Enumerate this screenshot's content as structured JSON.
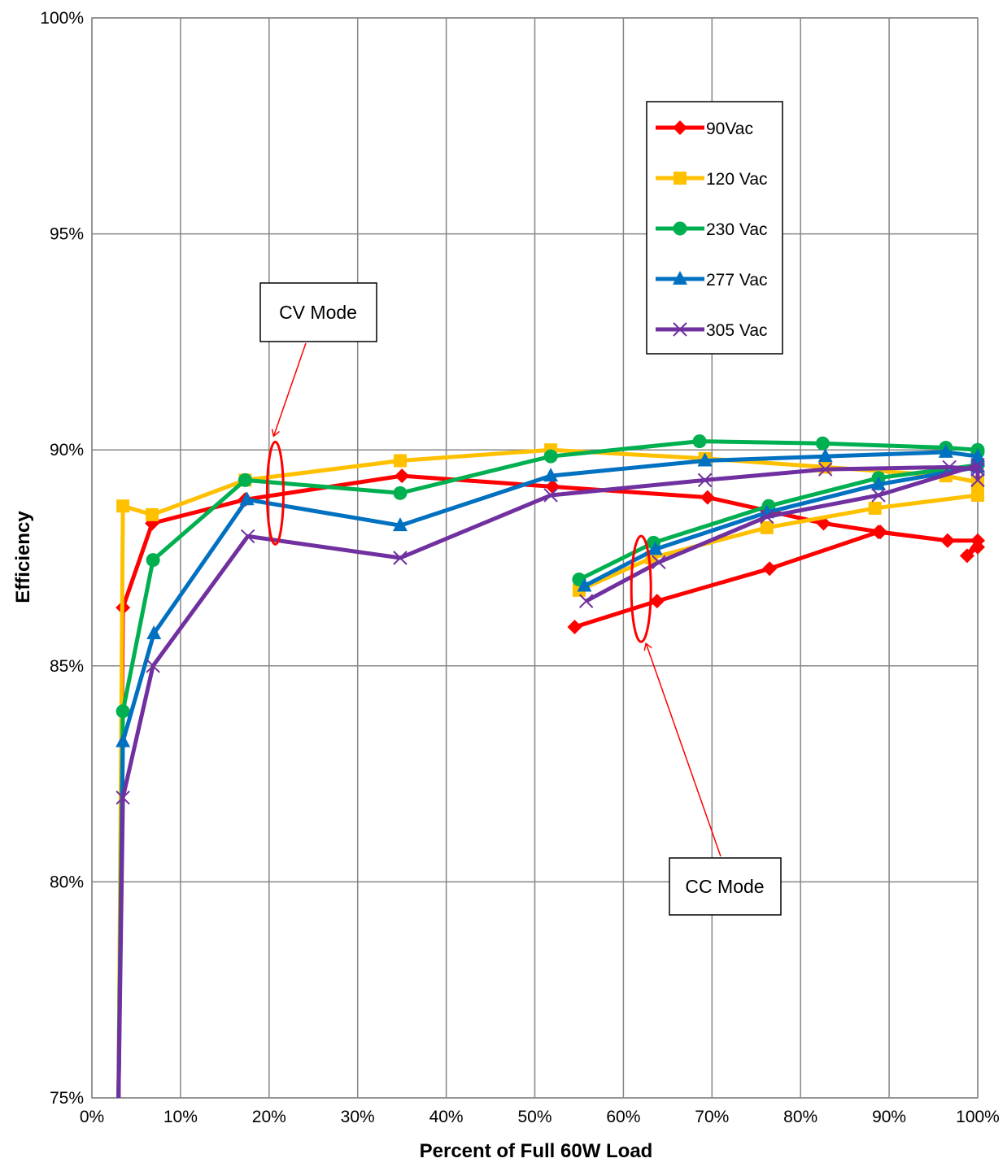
{
  "chart_data": {
    "type": "line",
    "xlabel": "Percent of Full 60W Load",
    "ylabel": "Efficiency",
    "xlim": [
      0,
      100
    ],
    "ylim": [
      75,
      100
    ],
    "x_ticks": [
      "0%",
      "10%",
      "20%",
      "30%",
      "40%",
      "50%",
      "60%",
      "70%",
      "80%",
      "90%",
      "100%"
    ],
    "y_ticks": [
      "75%",
      "80%",
      "85%",
      "90%",
      "95%",
      "100%"
    ],
    "grid": true,
    "legend_position": "top-right",
    "series": [
      {
        "name": "90Vac",
        "color": "#ff0000",
        "marker": "diamond",
        "segments": [
          [
            [
              3,
              75.0
            ],
            [
              3.5,
              86.35
            ],
            [
              6.8,
              88.3
            ],
            [
              17.3,
              88.85
            ],
            [
              35,
              89.4
            ],
            [
              52,
              89.15
            ],
            [
              69.5,
              88.9
            ],
            [
              82.6,
              88.3
            ],
            [
              89,
              88.1
            ],
            [
              96.6,
              87.9
            ],
            [
              100,
              87.9
            ],
            [
              98.8,
              87.55
            ],
            [
              100,
              87.75
            ]
          ],
          [
            [
              54.5,
              85.9
            ],
            [
              63.8,
              86.5
            ],
            [
              76.5,
              87.25
            ],
            [
              88.8,
              88.1
            ],
            [
              96.6,
              87.9
            ]
          ]
        ]
      },
      {
        "name": "120 Vac",
        "color": "#ffc000",
        "marker": "square",
        "segments": [
          [
            [
              3,
              75.0
            ],
            [
              3.5,
              88.7
            ],
            [
              6.8,
              88.5
            ],
            [
              17.3,
              89.3
            ],
            [
              34.8,
              89.75
            ],
            [
              51.8,
              90.0
            ],
            [
              69.2,
              89.8
            ],
            [
              82.8,
              89.6
            ],
            [
              96.4,
              89.4
            ],
            [
              100,
              89.25
            ],
            [
              100,
              89.05
            ]
          ],
          [
            [
              55,
              86.75
            ],
            [
              63.2,
              87.5
            ],
            [
              76.2,
              88.2
            ],
            [
              88.4,
              88.65
            ],
            [
              100,
              88.95
            ]
          ]
        ]
      },
      {
        "name": "230 Vac",
        "color": "#00b050",
        "marker": "circle",
        "segments": [
          [
            [
              3,
              75.0
            ],
            [
              3.5,
              83.95
            ],
            [
              6.9,
              87.45
            ],
            [
              17.3,
              89.3
            ],
            [
              34.8,
              89.0
            ],
            [
              51.8,
              89.85
            ],
            [
              68.6,
              90.2
            ],
            [
              82.5,
              90.15
            ],
            [
              96.4,
              90.05
            ],
            [
              100,
              90.0
            ],
            [
              100,
              89.95
            ]
          ],
          [
            [
              55,
              87.0
            ],
            [
              63.4,
              87.85
            ],
            [
              76.4,
              88.7
            ],
            [
              88.8,
              89.35
            ],
            [
              100,
              89.65
            ]
          ]
        ]
      },
      {
        "name": "277 Vac",
        "color": "#0070c0",
        "marker": "triangle",
        "segments": [
          [
            [
              3,
              75.0
            ],
            [
              3.5,
              83.25
            ],
            [
              7.0,
              85.75
            ],
            [
              17.5,
              88.85
            ],
            [
              34.8,
              88.25
            ],
            [
              51.8,
              89.4
            ],
            [
              69.2,
              89.75
            ],
            [
              82.8,
              89.85
            ],
            [
              96.4,
              89.95
            ],
            [
              100,
              89.85
            ],
            [
              100,
              89.75
            ]
          ],
          [
            [
              55.6,
              86.85
            ],
            [
              63.6,
              87.7
            ],
            [
              76.2,
              88.55
            ],
            [
              88.8,
              89.2
            ],
            [
              100,
              89.6
            ]
          ]
        ]
      },
      {
        "name": "305 Vac",
        "color": "#7030a0",
        "marker": "x",
        "segments": [
          [
            [
              3,
              75.0
            ],
            [
              3.5,
              81.95
            ],
            [
              6.9,
              85.0
            ],
            [
              17.6,
              88.0
            ],
            [
              34.8,
              87.5
            ],
            [
              51.8,
              88.95
            ],
            [
              69.2,
              89.3
            ],
            [
              82.8,
              89.55
            ],
            [
              96.8,
              89.6
            ],
            [
              100,
              89.55
            ],
            [
              100,
              89.3
            ]
          ],
          [
            [
              55.8,
              86.5
            ],
            [
              64.0,
              87.4
            ],
            [
              76.2,
              88.45
            ],
            [
              88.8,
              88.95
            ],
            [
              100,
              89.65
            ]
          ]
        ]
      }
    ],
    "annotations": [
      {
        "text": "CV Mode",
        "target_x": 20.7,
        "target_y": 89.0
      },
      {
        "text": "CC Mode",
        "target_x": 62.0,
        "target_y": 86.8
      }
    ]
  }
}
